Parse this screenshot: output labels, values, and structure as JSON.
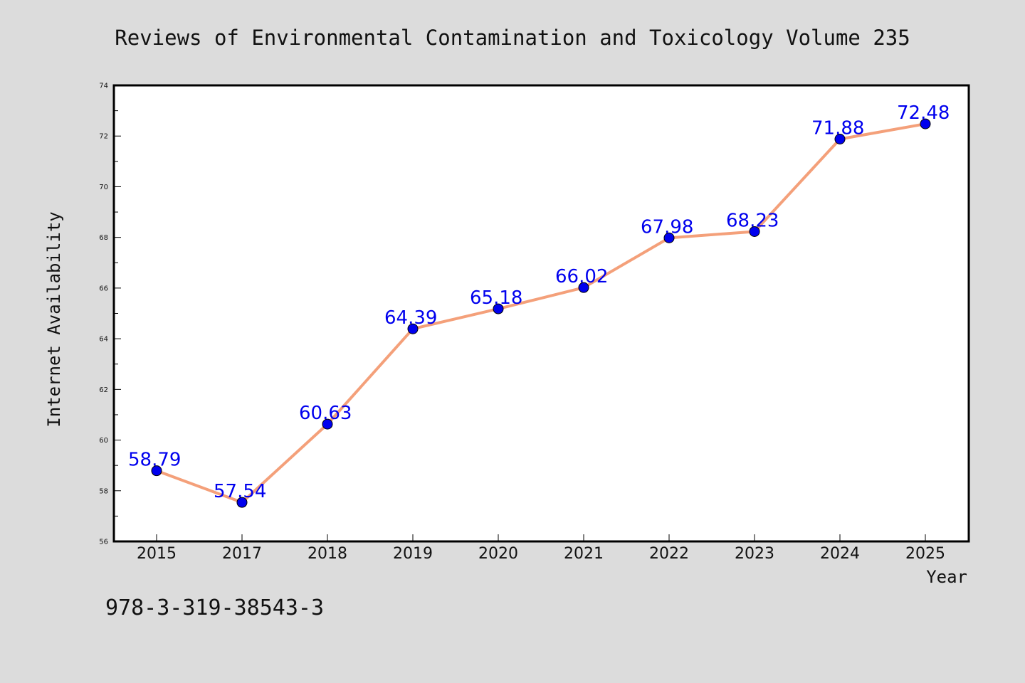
{
  "chart_data": {
    "type": "line",
    "title": "Reviews of Environmental Contamination and Toxicology Volume 235",
    "xlabel": "Year",
    "ylabel": "Internet Availability",
    "categories": [
      "2015",
      "2017",
      "2018",
      "2019",
      "2020",
      "2021",
      "2022",
      "2023",
      "2024",
      "2025"
    ],
    "series": [
      {
        "values": [
          58.79,
          57.54,
          60.63,
          64.39,
          65.18,
          66.02,
          67.98,
          68.23,
          71.88,
          72.48
        ],
        "labels": [
          "58.79",
          "57.54",
          "60.63",
          "64.39",
          "65.18",
          "66.02",
          "67.98",
          "68.23",
          "71.88",
          "72.48"
        ]
      }
    ],
    "ylim": [
      56,
      74
    ],
    "yticks": [
      56,
      58,
      60,
      62,
      64,
      66,
      68,
      70,
      72,
      74
    ],
    "ytick_labels": [
      "56",
      "58",
      "60",
      "62",
      "64",
      "66",
      "68",
      "70",
      "72",
      "74"
    ],
    "grid": false,
    "line_color": "#f4a07a",
    "marker_color": "#0000ee",
    "label_color": "#0000ee",
    "background_color": "#dcdcdc",
    "plot_background": "#ffffff"
  },
  "footer": {
    "isbn": "978-3-319-38543-3"
  }
}
